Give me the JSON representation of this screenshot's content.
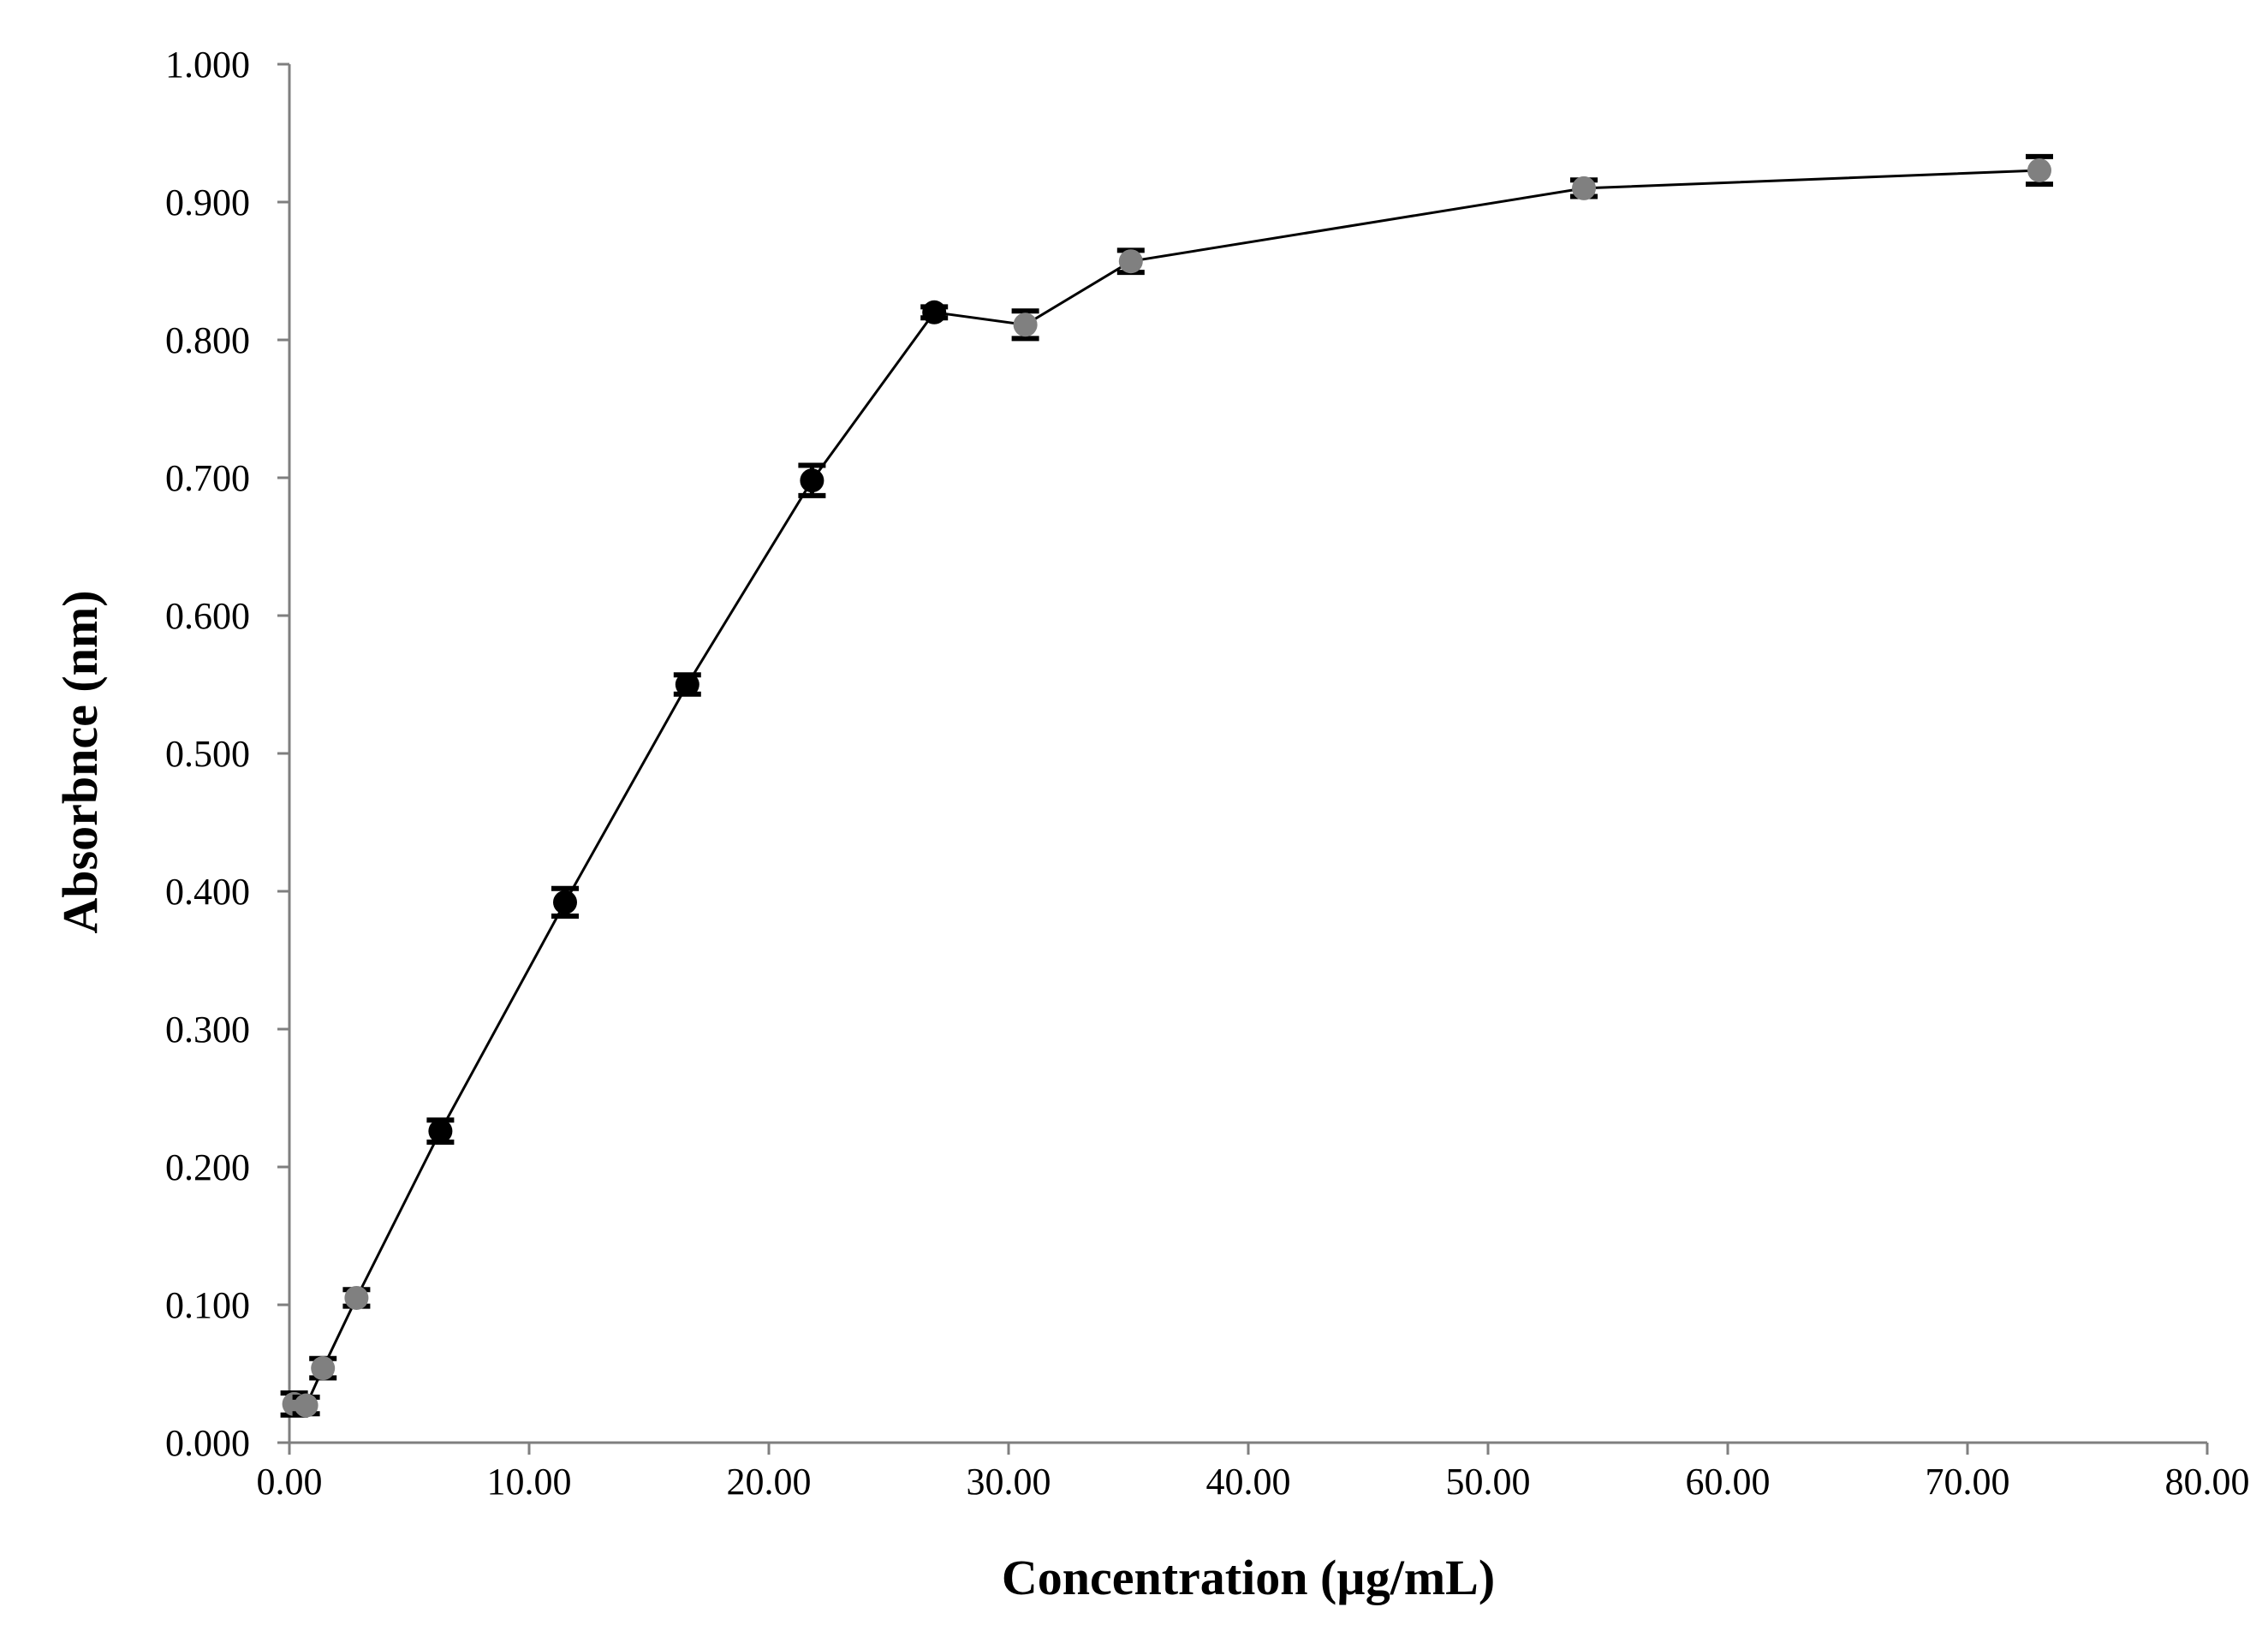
{
  "chart_data": {
    "type": "scatter",
    "title": "",
    "xlabel": "Concentration (µg/mL)",
    "ylabel": "Absorbnce (nm)",
    "xlim": [
      0,
      80
    ],
    "ylim": [
      0,
      1
    ],
    "x_ticks": [
      "0.00",
      "10.00",
      "20.00",
      "30.00",
      "40.00",
      "50.00",
      "60.00",
      "70.00",
      "80.00"
    ],
    "y_ticks": [
      "0.000",
      "0.100",
      "0.200",
      "0.300",
      "0.400",
      "0.500",
      "0.600",
      "0.700",
      "0.800",
      "0.900",
      "1.000"
    ],
    "grid": false,
    "legend": "none",
    "line_color": "#000000",
    "marker_colors": {
      "black": "#000000",
      "gray": "#808080"
    },
    "series": [
      {
        "points": [
          {
            "x": 0.2,
            "y": 0.028,
            "err": 0.008,
            "marker": "gray"
          },
          {
            "x": 0.7,
            "y": 0.027,
            "err": 0.006,
            "marker": "gray"
          },
          {
            "x": 1.4,
            "y": 0.054,
            "err": 0.007,
            "marker": "gray"
          },
          {
            "x": 2.8,
            "y": 0.105,
            "err": 0.006,
            "marker": "gray"
          },
          {
            "x": 6.3,
            "y": 0.226,
            "err": 0.008,
            "marker": "black"
          },
          {
            "x": 11.5,
            "y": 0.392,
            "err": 0.01,
            "marker": "black"
          },
          {
            "x": 16.6,
            "y": 0.55,
            "err": 0.007,
            "marker": "black"
          },
          {
            "x": 21.8,
            "y": 0.698,
            "err": 0.011,
            "marker": "black"
          },
          {
            "x": 26.9,
            "y": 0.82,
            "err": 0.004,
            "marker": "black"
          },
          {
            "x": 30.7,
            "y": 0.811,
            "err": 0.01,
            "marker": "gray"
          },
          {
            "x": 35.1,
            "y": 0.857,
            "err": 0.008,
            "marker": "gray"
          },
          {
            "x": 54.0,
            "y": 0.91,
            "err": 0.006,
            "marker": "gray"
          },
          {
            "x": 73.0,
            "y": 0.923,
            "err": 0.01,
            "marker": "gray"
          }
        ]
      }
    ]
  }
}
